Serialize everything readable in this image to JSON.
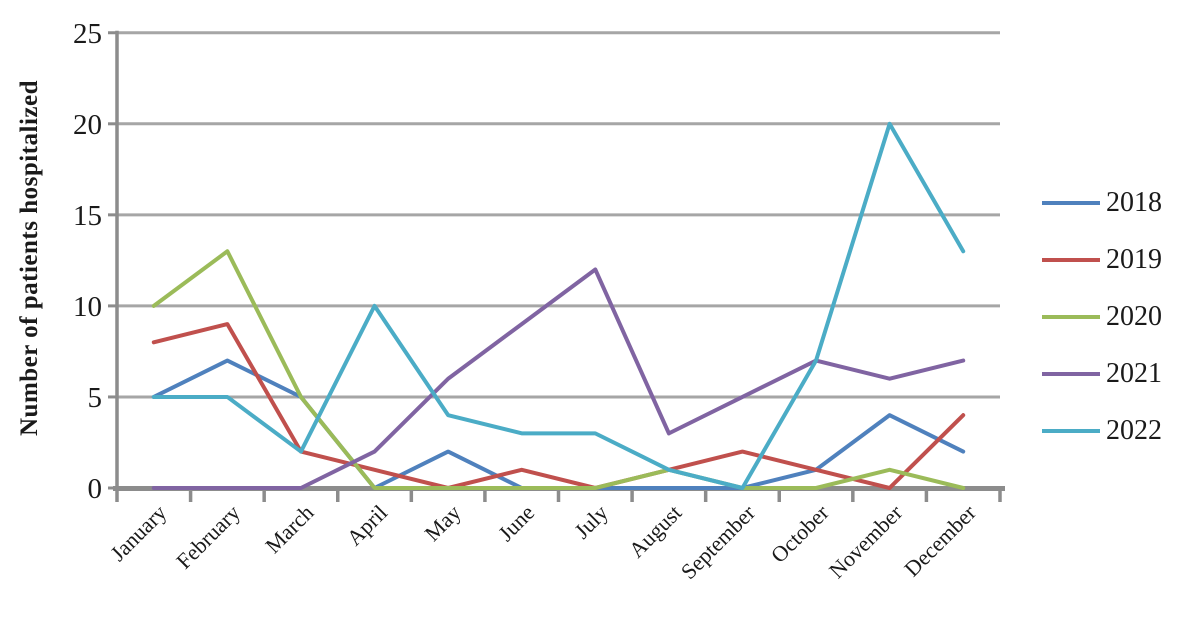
{
  "chart_data": {
    "type": "line",
    "title": "",
    "xlabel": "",
    "ylabel": "Number of patients hospitalized",
    "ylim": [
      0,
      25
    ],
    "yticks": [
      0,
      5,
      10,
      15,
      20,
      25
    ],
    "grid": "horizontal",
    "legend_position": "right",
    "categories": [
      "January",
      "February",
      "March",
      "April",
      "May",
      "June",
      "July",
      "August",
      "September",
      "October",
      "November",
      "December"
    ],
    "series": [
      {
        "name": "2018",
        "color": "#4F81BD",
        "values": [
          5,
          7,
          5,
          0,
          2,
          0,
          0,
          0,
          0,
          1,
          4,
          2
        ]
      },
      {
        "name": "2019",
        "color": "#C0504D",
        "values": [
          8,
          9,
          2,
          1,
          0,
          1,
          0,
          1,
          2,
          1,
          0,
          4
        ]
      },
      {
        "name": "2020",
        "color": "#9BBB59",
        "values": [
          10,
          13,
          5,
          0,
          0,
          0,
          0,
          1,
          0,
          0,
          1,
          0
        ]
      },
      {
        "name": "2021",
        "color": "#8064A2",
        "values": [
          0,
          0,
          0,
          2,
          6,
          9,
          12,
          3,
          5,
          7,
          6,
          7
        ]
      },
      {
        "name": "2022",
        "color": "#4BACC6",
        "values": [
          5,
          5,
          2,
          10,
          4,
          3,
          3,
          1,
          0,
          7,
          20,
          13
        ]
      }
    ]
  },
  "colors": {
    "gridline": "#A6A6A6",
    "axis": "#8C8C8C",
    "tick": "#8C8C8C",
    "text": "#1A1A1A",
    "background": "#FFFFFF"
  }
}
